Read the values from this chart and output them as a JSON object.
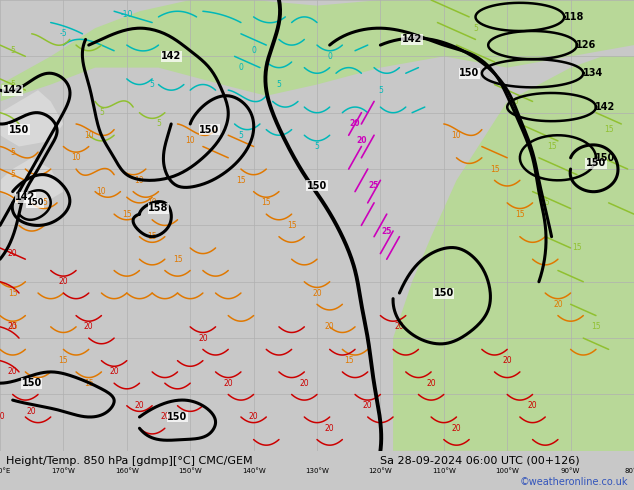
{
  "title_left": "Height/Temp. 850 hPa [gdmp][°C] CMC/GEM",
  "title_right": "Sa 28-09-2024 06:00 UTC (00+126)",
  "watermark": "©weatheronline.co.uk",
  "bg_color": "#c8c8c8",
  "ocean_color": "#c8c8c8",
  "land_color": "#d8d8d8",
  "green_color": "#b8d898",
  "grid_color": "#b0b0b0",
  "figsize": [
    6.34,
    4.9
  ],
  "dpi": 100,
  "title_fontsize": 8,
  "watermark_color": "#3355bb",
  "watermark_fontsize": 7
}
